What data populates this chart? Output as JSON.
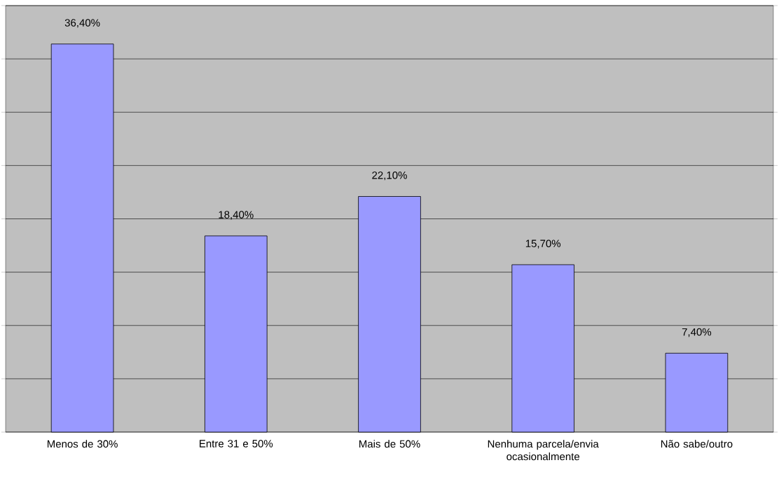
{
  "chart_data": {
    "type": "bar",
    "categories": [
      "Menos de 30%",
      "Entre 31 e 50%",
      "Mais de 50%",
      "Nenhuma parcela/envia ocasionalmente",
      "Não sabe/outro"
    ],
    "values": [
      36.4,
      18.4,
      22.1,
      15.7,
      7.4
    ],
    "value_labels": [
      "36,40%",
      "18,40%",
      "22,10%",
      "15,70%",
      "7,40%"
    ],
    "color": "#9999ff",
    "ylim": [
      0,
      40
    ],
    "yticks": [
      {
        "value": 0,
        "label": null
      },
      {
        "value": 5,
        "label": null
      },
      {
        "value": 10,
        "label": null
      },
      {
        "value": 15,
        "label": null
      },
      {
        "value": 20,
        "label": null
      },
      {
        "value": 25,
        "label": null
      },
      {
        "value": 30,
        "label": null
      },
      {
        "value": 35,
        "label": null
      },
      {
        "value": 40,
        "label": null
      }
    ],
    "grid": "y",
    "tick_labels": "x"
  }
}
